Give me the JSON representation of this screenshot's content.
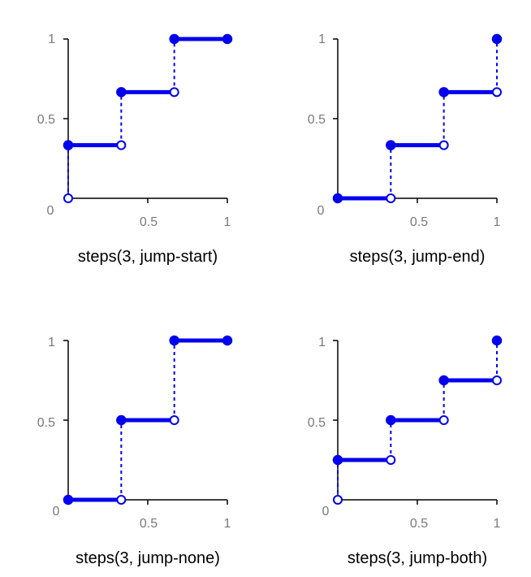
{
  "colors": {
    "series": "#0000ee",
    "axis": "#000000",
    "tick_text": "#7a7a7a",
    "caption_text": "#000000",
    "background": "#ffffff"
  },
  "chart_data": [
    {
      "type": "line",
      "title": "steps(3, jump-start)",
      "xlim": [
        0,
        1
      ],
      "ylim": [
        0,
        1
      ],
      "x_ticks": [
        "0.5",
        "1"
      ],
      "y_ticks": [
        "0.5",
        "1"
      ],
      "origin_label": "0",
      "segments": [
        {
          "x": [
            0,
            0.3333
          ],
          "y": [
            0.3333,
            0.3333
          ]
        },
        {
          "x": [
            0.3333,
            0.6667
          ],
          "y": [
            0.6667,
            0.6667
          ]
        },
        {
          "x": [
            0.6667,
            1
          ],
          "y": [
            1,
            1
          ]
        }
      ],
      "jumps": [
        {
          "x": 0,
          "y": [
            0,
            0.3333
          ]
        },
        {
          "x": 0.3333,
          "y": [
            0.3333,
            0.6667
          ]
        },
        {
          "x": 0.6667,
          "y": [
            0.6667,
            1
          ]
        }
      ],
      "open_points": [
        [
          0,
          0
        ],
        [
          0.3333,
          0.3333
        ],
        [
          0.6667,
          0.6667
        ]
      ],
      "closed_points": [
        [
          0,
          0.3333
        ],
        [
          0.3333,
          0.6667
        ],
        [
          0.6667,
          1
        ],
        [
          1,
          1
        ]
      ]
    },
    {
      "type": "line",
      "title": "steps(3, jump-end)",
      "xlim": [
        0,
        1
      ],
      "ylim": [
        0,
        1
      ],
      "x_ticks": [
        "0.5",
        "1"
      ],
      "y_ticks": [
        "0.5",
        "1"
      ],
      "origin_label": "0",
      "segments": [
        {
          "x": [
            0,
            0.3333
          ],
          "y": [
            0,
            0
          ]
        },
        {
          "x": [
            0.3333,
            0.6667
          ],
          "y": [
            0.3333,
            0.3333
          ]
        },
        {
          "x": [
            0.6667,
            1
          ],
          "y": [
            0.6667,
            0.6667
          ]
        }
      ],
      "jumps": [
        {
          "x": 0.3333,
          "y": [
            0,
            0.3333
          ]
        },
        {
          "x": 0.6667,
          "y": [
            0.3333,
            0.6667
          ]
        },
        {
          "x": 1,
          "y": [
            0.6667,
            1
          ]
        }
      ],
      "open_points": [
        [
          0.3333,
          0
        ],
        [
          0.6667,
          0.3333
        ],
        [
          1,
          0.6667
        ]
      ],
      "closed_points": [
        [
          0,
          0
        ],
        [
          0.3333,
          0.3333
        ],
        [
          0.6667,
          0.6667
        ],
        [
          1,
          1
        ]
      ]
    },
    {
      "type": "line",
      "title": "steps(3, jump-none)",
      "xlim": [
        0,
        1
      ],
      "ylim": [
        0,
        1
      ],
      "x_ticks": [
        "0.5",
        "1"
      ],
      "y_ticks": [
        "0.5",
        "1"
      ],
      "origin_label": "0",
      "segments": [
        {
          "x": [
            0,
            0.3333
          ],
          "y": [
            0,
            0
          ]
        },
        {
          "x": [
            0.3333,
            0.6667
          ],
          "y": [
            0.5,
            0.5
          ]
        },
        {
          "x": [
            0.6667,
            1
          ],
          "y": [
            1,
            1
          ]
        }
      ],
      "jumps": [
        {
          "x": 0.3333,
          "y": [
            0,
            0.5
          ]
        },
        {
          "x": 0.6667,
          "y": [
            0.5,
            1
          ]
        }
      ],
      "open_points": [
        [
          0.3333,
          0
        ],
        [
          0.6667,
          0.5
        ]
      ],
      "closed_points": [
        [
          0,
          0
        ],
        [
          0.3333,
          0.5
        ],
        [
          0.6667,
          1
        ],
        [
          1,
          1
        ]
      ]
    },
    {
      "type": "line",
      "title": "steps(3, jump-both)",
      "xlim": [
        0,
        1
      ],
      "ylim": [
        0,
        1
      ],
      "x_ticks": [
        "0.5",
        "1"
      ],
      "y_ticks": [
        "0.5",
        "1"
      ],
      "origin_label": "0",
      "segments": [
        {
          "x": [
            0,
            0.3333
          ],
          "y": [
            0.25,
            0.25
          ]
        },
        {
          "x": [
            0.3333,
            0.6667
          ],
          "y": [
            0.5,
            0.5
          ]
        },
        {
          "x": [
            0.6667,
            1
          ],
          "y": [
            0.75,
            0.75
          ]
        }
      ],
      "jumps": [
        {
          "x": 0,
          "y": [
            0,
            0.25
          ]
        },
        {
          "x": 0.3333,
          "y": [
            0.25,
            0.5
          ]
        },
        {
          "x": 0.6667,
          "y": [
            0.5,
            0.75
          ]
        },
        {
          "x": 1,
          "y": [
            0.75,
            1
          ]
        }
      ],
      "open_points": [
        [
          0,
          0
        ],
        [
          0.3333,
          0.25
        ],
        [
          0.6667,
          0.5
        ],
        [
          1,
          0.75
        ]
      ],
      "closed_points": [
        [
          0,
          0.25
        ],
        [
          0.3333,
          0.5
        ],
        [
          0.6667,
          0.75
        ],
        [
          1,
          1
        ]
      ]
    }
  ]
}
